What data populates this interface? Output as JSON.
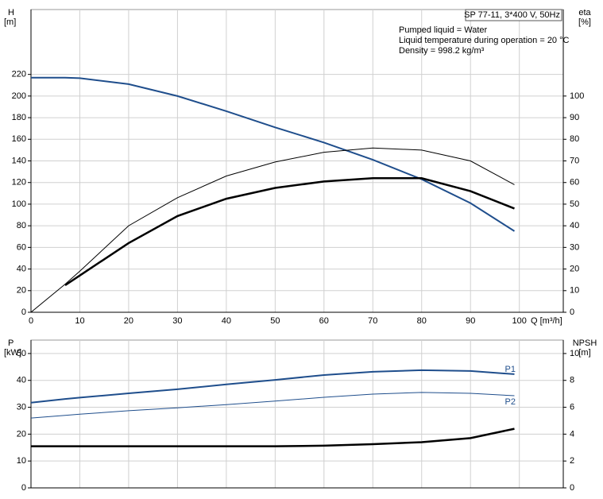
{
  "chart_data": [
    {
      "type": "line",
      "y_label": "H",
      "y_unit": "[m]",
      "y2_label": "eta",
      "y2_unit": "[%]",
      "x_label": "Q [m³/h]",
      "info_title": "SP 77-11, 3*400 V, 50Hz",
      "info_lines": [
        "Pumped liquid = Water",
        "Liquid temperature during operation = 20 °C",
        "Density = 998.2 kg/m³"
      ],
      "x": [
        0,
        7,
        10,
        20,
        30,
        40,
        50,
        60,
        70,
        80,
        90,
        99
      ],
      "xlim": [
        0,
        109
      ],
      "xticks": [
        0,
        10,
        20,
        30,
        40,
        50,
        60,
        70,
        80,
        90,
        100
      ],
      "ylim": [
        0,
        280
      ],
      "yticks": [
        0,
        20,
        40,
        60,
        80,
        100,
        120,
        140,
        160,
        180,
        200,
        220
      ],
      "y2lim": [
        0,
        140
      ],
      "y2ticks": [
        0,
        10,
        20,
        30,
        40,
        50,
        60,
        70,
        80,
        90,
        100
      ],
      "grid": true,
      "series": [
        {
          "color": "#1f4e8c",
          "line_width": 2,
          "values": [
            217,
            217,
            216.5,
            211,
            200,
            186,
            171,
            157,
            141,
            123,
            101,
            75
          ]
        },
        {
          "color": "#000000",
          "line_width": 1,
          "axis": "y2",
          "values": [
            0,
            13,
            19,
            40,
            53,
            63,
            69.5,
            74,
            76,
            75,
            70,
            59
          ]
        },
        {
          "color": "#000000",
          "line_width": 2.5,
          "axis": "y2",
          "values": [
            null,
            12.5,
            17,
            32,
            44.5,
            52.5,
            57.5,
            60.5,
            62,
            62,
            56,
            48
          ]
        }
      ]
    },
    {
      "type": "line",
      "y_label": "P",
      "y_unit": "[kW]",
      "y2_label": "NPSH",
      "y2_unit": "[m]",
      "x": [
        0,
        7,
        10,
        20,
        30,
        40,
        50,
        60,
        70,
        80,
        90,
        99
      ],
      "xlim": [
        0,
        109
      ],
      "ylim": [
        0,
        55
      ],
      "yticks": [
        0,
        10,
        20,
        30,
        40,
        50
      ],
      "y2lim": [
        0,
        11
      ],
      "y2ticks": [
        0,
        2,
        4,
        6,
        8,
        10
      ],
      "grid": true,
      "series": [
        {
          "name": "P1",
          "color": "#1f4e8c",
          "line_width": 2,
          "values": [
            31.7,
            33.1,
            33.6,
            35.2,
            36.7,
            38.5,
            40.2,
            42,
            43.2,
            43.8,
            43.5,
            42.3
          ]
        },
        {
          "name": "P2",
          "color": "#1f4e8c",
          "line_width": 1,
          "values": [
            26,
            27,
            27.4,
            28.7,
            29.8,
            31,
            32.3,
            33.7,
            34.9,
            35.5,
            35.2,
            34.3
          ]
        },
        {
          "color": "#000000",
          "line_width": 2.5,
          "axis": "y2",
          "values": [
            3.1,
            3.1,
            3.1,
            3.1,
            3.1,
            3.1,
            3.1,
            3.14,
            3.25,
            3.4,
            3.7,
            4.4
          ]
        }
      ]
    }
  ]
}
